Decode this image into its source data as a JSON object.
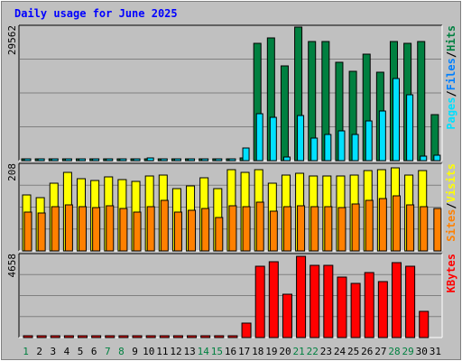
{
  "chart_data": [
    {
      "type": "bar",
      "panel": "hits-files-pages",
      "title": "Daily usage for June 2025",
      "categories": [
        "1",
        "2",
        "3",
        "4",
        "5",
        "6",
        "7",
        "8",
        "9",
        "10",
        "11",
        "12",
        "13",
        "14",
        "15",
        "16",
        "17",
        "18",
        "19",
        "20",
        "21",
        "22",
        "23",
        "24",
        "25",
        "26",
        "27",
        "28",
        "29",
        "30",
        "31"
      ],
      "weekend_days": [
        "1",
        "7",
        "8",
        "14",
        "15",
        "21",
        "22",
        "28",
        "29"
      ],
      "max_label": "29562",
      "ylim": [
        0,
        29562
      ],
      "grid": true,
      "series": [
        {
          "name": "Hits",
          "color": "#008040",
          "values": [
            400,
            300,
            400,
            400,
            400,
            400,
            400,
            400,
            400,
            400,
            400,
            400,
            400,
            400,
            400,
            400,
            600,
            26000,
            27200,
            21000,
            29500,
            26300,
            26300,
            21800,
            19800,
            23500,
            19500,
            26300,
            26000,
            26300,
            10200
          ]
        },
        {
          "name": "Files",
          "color": "#0080ff",
          "values": [
            0,
            0,
            0,
            0,
            0,
            0,
            0,
            0,
            0,
            0,
            0,
            0,
            0,
            0,
            0,
            0,
            0,
            0,
            0,
            0,
            0,
            0,
            0,
            0,
            0,
            0,
            0,
            0,
            0,
            0,
            0
          ]
        },
        {
          "name": "Pages",
          "color": "#00e0ff",
          "values": [
            200,
            150,
            300,
            300,
            300,
            300,
            300,
            300,
            300,
            600,
            300,
            300,
            300,
            300,
            300,
            200,
            2800,
            10300,
            9600,
            800,
            9900,
            5000,
            5800,
            6500,
            5700,
            8700,
            11000,
            18100,
            14600,
            1000,
            1100
          ]
        }
      ],
      "axis_label_parts": [
        "Pages",
        "Files",
        "Hits"
      ]
    },
    {
      "type": "bar",
      "panel": "visits-sites",
      "categories": [
        "1",
        "2",
        "3",
        "4",
        "5",
        "6",
        "7",
        "8",
        "9",
        "10",
        "11",
        "12",
        "13",
        "14",
        "15",
        "16",
        "17",
        "18",
        "19",
        "20",
        "21",
        "22",
        "23",
        "24",
        "25",
        "26",
        "27",
        "28",
        "29",
        "30",
        "31"
      ],
      "max_label": "208",
      "ylim": [
        0,
        208
      ],
      "grid": true,
      "series": [
        {
          "name": "Visits",
          "color": "#ffff00",
          "values": [
            135,
            130,
            165,
            190,
            175,
            170,
            180,
            172,
            168,
            182,
            183,
            150,
            158,
            178,
            150,
            198,
            190,
            198,
            165,
            185,
            188,
            182,
            182,
            182,
            183,
            195,
            198,
            201,
            183,
            195,
            0
          ]
        },
        {
          "name": "Sites",
          "color": "#ff8000",
          "values": [
            95,
            92,
            108,
            112,
            108,
            106,
            110,
            102,
            94,
            108,
            122,
            95,
            99,
            103,
            80,
            110,
            108,
            118,
            96,
            107,
            110,
            108,
            107,
            106,
            114,
            122,
            126,
            134,
            111,
            107,
            102
          ]
        }
      ],
      "axis_label_parts": [
        "Sites",
        "Visits"
      ]
    },
    {
      "type": "bar",
      "panel": "kbytes",
      "categories": [
        "1",
        "2",
        "3",
        "4",
        "5",
        "6",
        "7",
        "8",
        "9",
        "10",
        "11",
        "12",
        "13",
        "14",
        "15",
        "16",
        "17",
        "18",
        "19",
        "20",
        "21",
        "22",
        "23",
        "24",
        "25",
        "26",
        "27",
        "28",
        "29",
        "30",
        "31"
      ],
      "max_label": "4658",
      "ylim": [
        0,
        4658
      ],
      "grid": true,
      "series": [
        {
          "name": "KBytes",
          "color": "#ff0000",
          "values": [
            40,
            40,
            40,
            40,
            40,
            40,
            40,
            40,
            40,
            90,
            40,
            40,
            40,
            40,
            40,
            40,
            800,
            4050,
            4280,
            2450,
            4610,
            4120,
            4120,
            3450,
            3050,
            3700,
            3170,
            4260,
            4060,
            1500,
            0
          ]
        }
      ],
      "axis_label_parts": [
        "KBytes"
      ]
    }
  ]
}
